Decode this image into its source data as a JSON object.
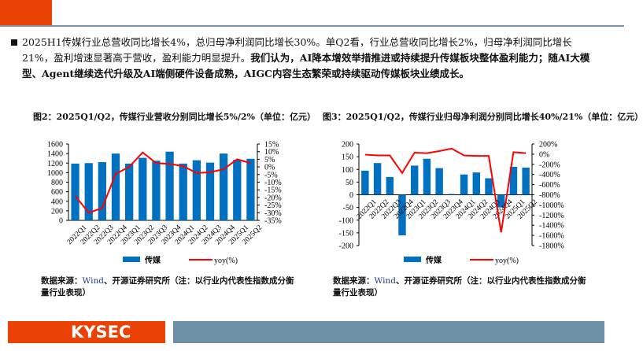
{
  "summary": {
    "normal": "2025H1传媒行业总营收同比增长4%，总归母净利润同比增长30%。单Q2看，行业总营收同比增长2%，归母净利润同比增长21%，盈利增速显著高于营收，盈利能力明显提升。",
    "bold": "我们认为，AI降本增效举措推进或持续提升传媒板块整体盈利能力；随AI大模型、Agent继续迭代升级及AI端侧硬件设备成熟，AIGC内容生态繁荣或持续驱动传媒板块业绩成长。"
  },
  "footer": {
    "logo": "KYSEC"
  },
  "sources": [
    {
      "label": "数据来源：",
      "wind": "Wind",
      "rest": "、开源证券研究所（注：以行业内代表性指数成分衡量行业表现）"
    },
    {
      "label": "数据来源：",
      "wind": "Wind",
      "rest": "、开源证券研究所（注：以行业内代表性指数成分衡量行业表现）"
    }
  ],
  "colors": {
    "bar": "#0070c0",
    "line": "#ff0000",
    "brand": "#ec4104",
    "band": "#6e91a5"
  },
  "chart_data": [
    {
      "type": "bar",
      "title": "图2：2025Q1/Q2，传媒行业营收分别同比增长5%/2%（单位：亿元）",
      "categories": [
        "2022Q1",
        "2022Q2",
        "2022Q3",
        "2022Q4",
        "2023Q1",
        "2023Q2",
        "2023Q3",
        "2023Q4",
        "2024Q1",
        "2024Q2",
        "2024Q3",
        "2024Q4",
        "2025Q1",
        "2025Q2"
      ],
      "series": [
        {
          "name": "传媒",
          "axis": "left",
          "type": "bar",
          "values": [
            1190,
            1200,
            1220,
            1400,
            1190,
            1310,
            1250,
            1440,
            1190,
            1260,
            1210,
            1400,
            1270,
            1290
          ]
        },
        {
          "name": "yoy(%)",
          "axis": "right",
          "type": "line",
          "values": [
            -19,
            -30,
            -27,
            -4.5,
            0,
            9.5,
            2.5,
            2,
            0.5,
            -4,
            -3.5,
            -1.5,
            5,
            2.5
          ]
        }
      ],
      "ylim": [
        0,
        1600
      ],
      "yticks": [
        0,
        200,
        400,
        600,
        800,
        1000,
        1200,
        1400,
        1600
      ],
      "y2lim": [
        -35,
        15
      ],
      "y2ticks": [
        -35,
        -30,
        -25,
        -20,
        -15,
        -10,
        -5,
        0,
        5,
        10,
        15
      ],
      "legend": "bottom"
    },
    {
      "type": "bar",
      "title": "图3：2025Q1/Q2，传媒行业归母净利润分别同比增长40%/21%（单位：亿元）",
      "categories": [
        "2022Q1",
        "2022Q2",
        "2022Q3",
        "2022Q4",
        "2023Q1",
        "2023Q2",
        "2023Q3",
        "2023Q4",
        "2024Q1",
        "2024Q2",
        "2024Q3",
        "2024Q4",
        "2025Q1",
        "2025Q2"
      ],
      "series": [
        {
          "name": "传媒",
          "axis": "left",
          "type": "bar",
          "values": [
            95,
            125,
            70,
            -160,
            115,
            142,
            105,
            3,
            80,
            88,
            65,
            -50,
            110,
            107
          ]
        },
        {
          "name": "yoy(%)",
          "axis": "right",
          "type": "line",
          "values": [
            -10,
            -25,
            -25,
            -370,
            30,
            20,
            60,
            110,
            -25,
            -35,
            -35,
            -1540,
            40,
            20
          ]
        }
      ],
      "ylim": [
        -200,
        200
      ],
      "yticks": [
        -200,
        -150,
        -100,
        -50,
        0,
        50,
        100,
        150,
        200
      ],
      "y2lim": [
        -1800,
        200
      ],
      "y2ticks": [
        -1800,
        -1600,
        -1400,
        -1200,
        -1000,
        -800,
        -600,
        -400,
        -200,
        0,
        200
      ],
      "legend": "bottom"
    }
  ]
}
